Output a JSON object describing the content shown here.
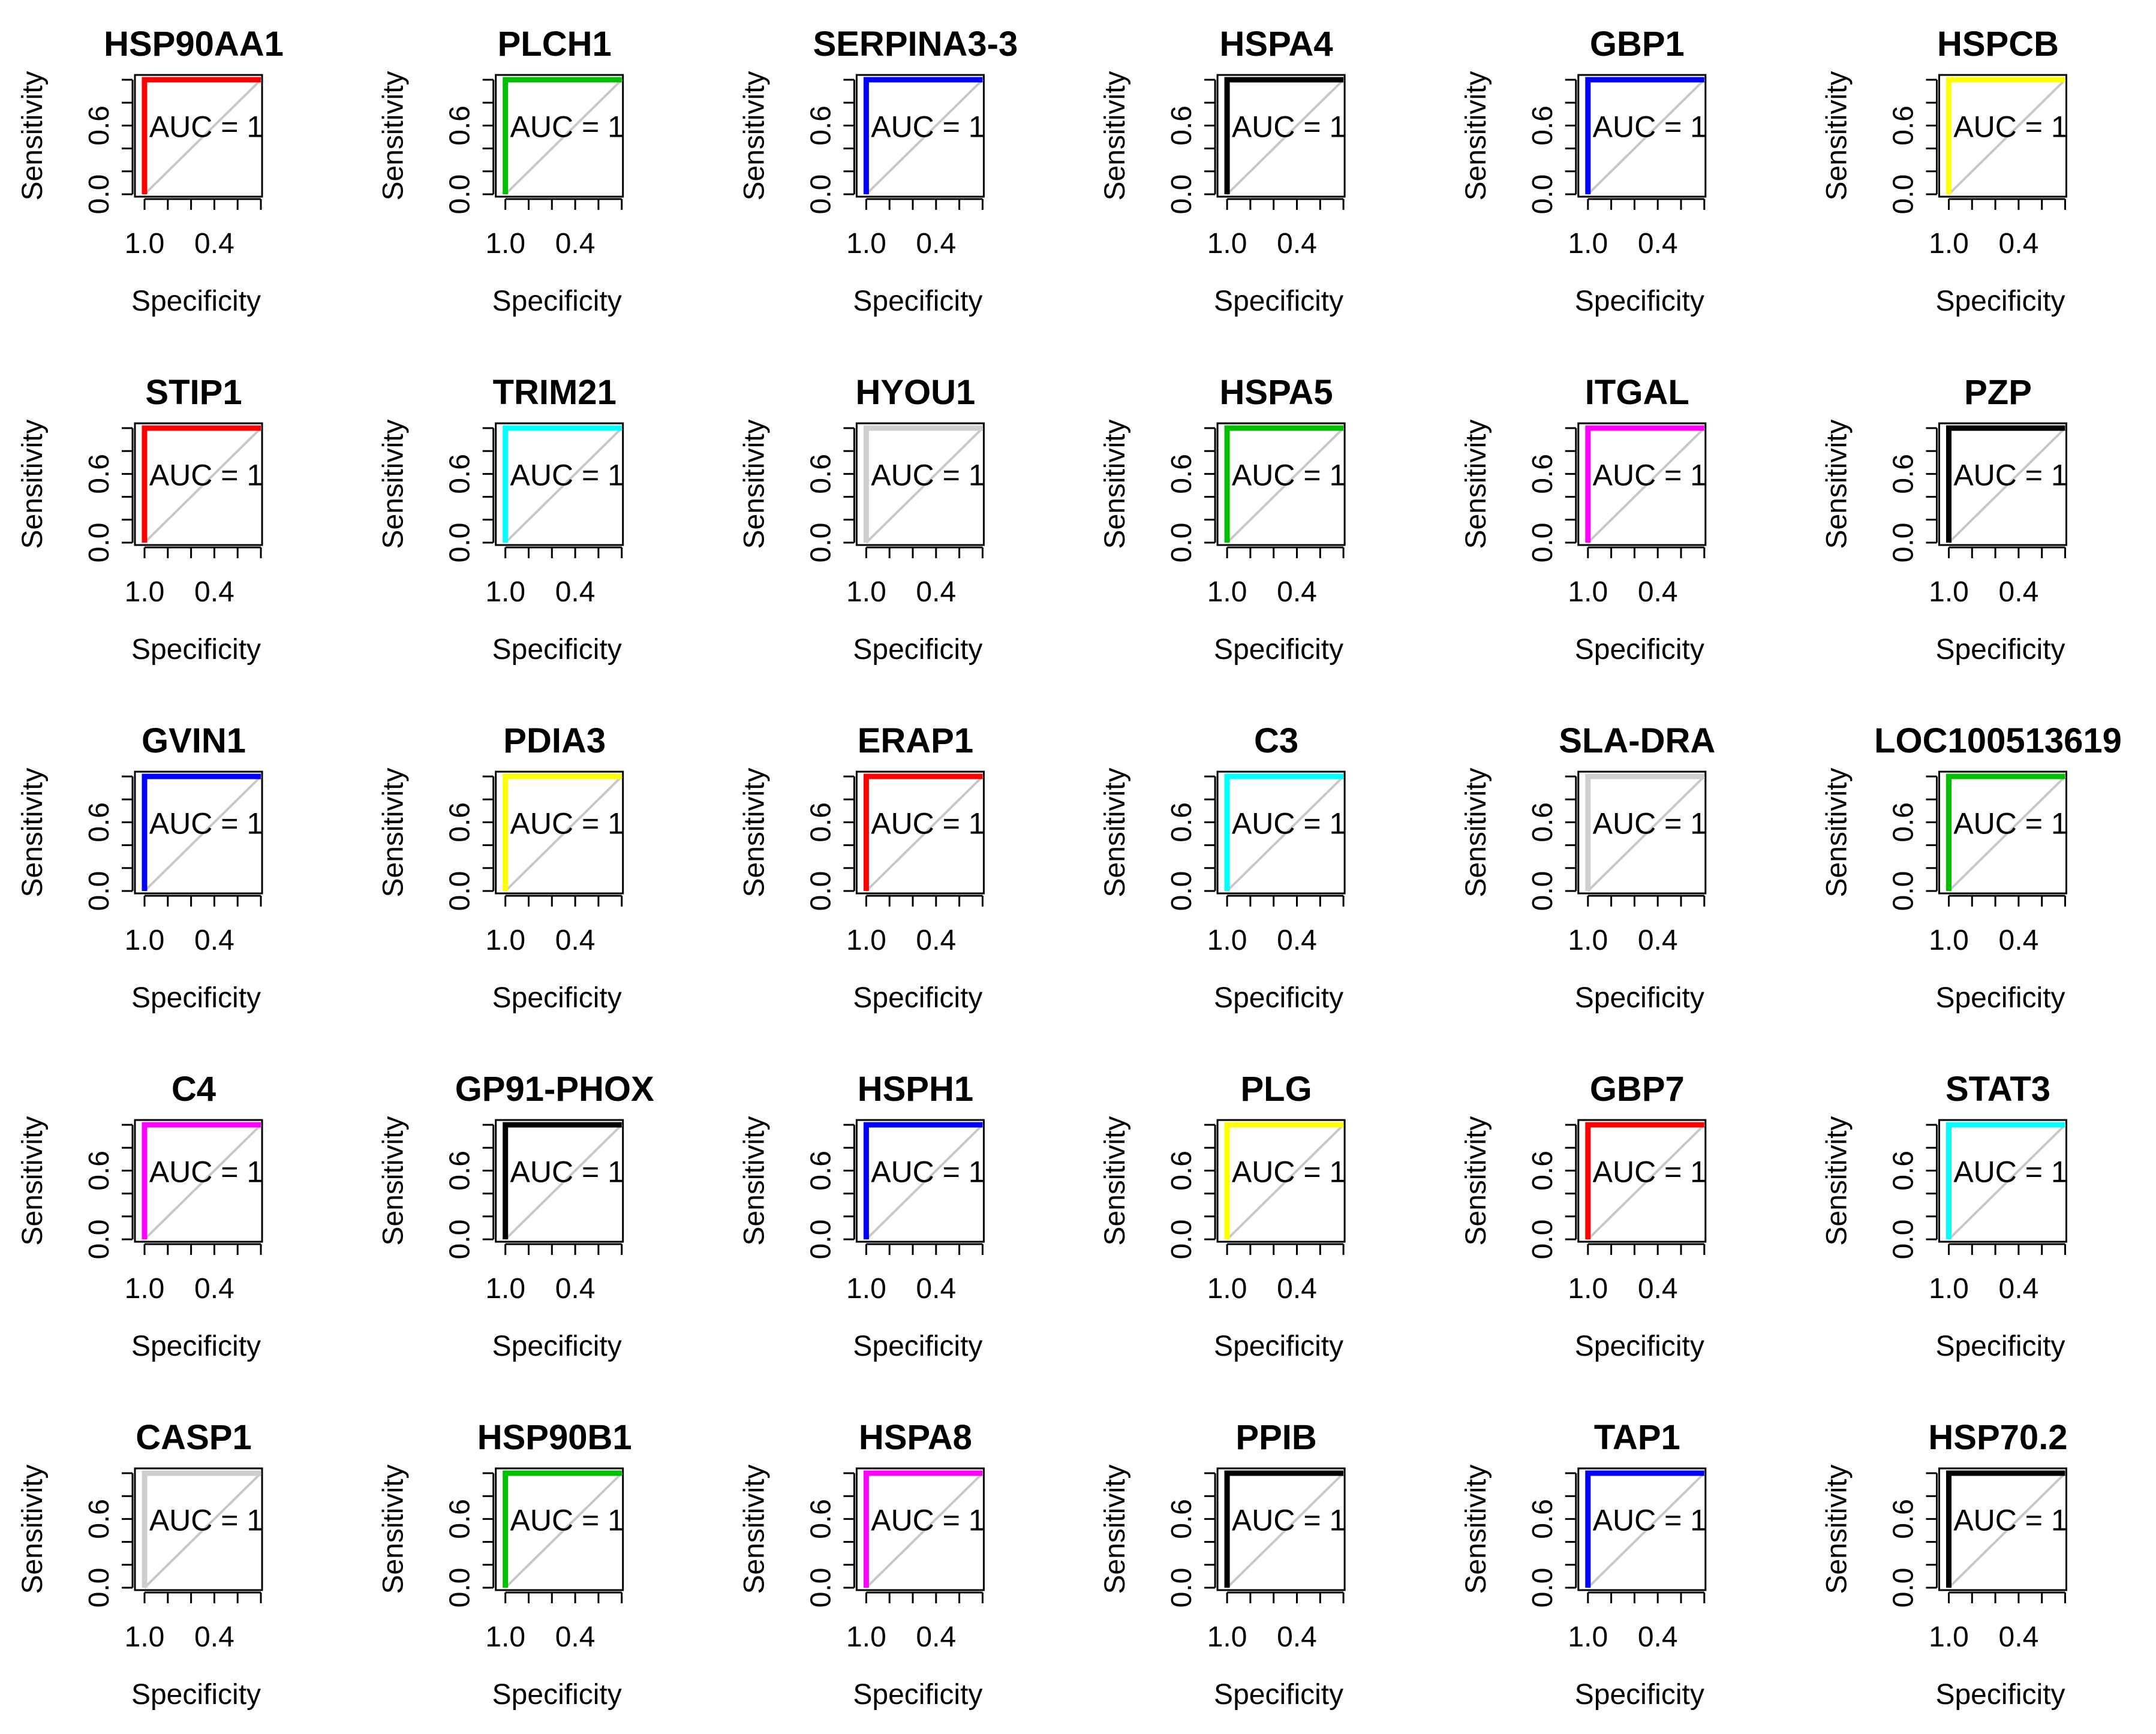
{
  "figure": {
    "x_axis_label": "Specificity",
    "y_axis_label": "Sensitivity",
    "x_tick_labels": [
      "1.0",
      "0.4"
    ],
    "y_tick_labels": [
      "0.0",
      "0.6"
    ],
    "reference_line_color": "#c8c8c8"
  },
  "chart_data": [
    {
      "type": "line",
      "title": "HSP90AA1",
      "color": "#ff0000",
      "annotation": "AUC = 1",
      "auc": 1,
      "xlabel": "Specificity",
      "ylabel": "Sensitivity",
      "xlim": [
        1.0,
        0.0
      ],
      "ylim": [
        0.0,
        1.0
      ],
      "x": [
        1.0,
        1.0,
        0.0
      ],
      "y": [
        0.0,
        1.0,
        1.0
      ]
    },
    {
      "type": "line",
      "title": "PLCH1",
      "color": "#00c000",
      "annotation": "AUC = 1",
      "auc": 1,
      "xlabel": "Specificity",
      "ylabel": "Sensitivity",
      "xlim": [
        1.0,
        0.0
      ],
      "ylim": [
        0.0,
        1.0
      ],
      "x": [
        1.0,
        1.0,
        0.0
      ],
      "y": [
        0.0,
        1.0,
        1.0
      ]
    },
    {
      "type": "line",
      "title": "SERPINA3-3",
      "color": "#0000ff",
      "annotation": "AUC = 1",
      "auc": 1,
      "xlabel": "Specificity",
      "ylabel": "Sensitivity",
      "xlim": [
        1.0,
        0.0
      ],
      "ylim": [
        0.0,
        1.0
      ],
      "x": [
        1.0,
        1.0,
        0.0
      ],
      "y": [
        0.0,
        1.0,
        1.0
      ]
    },
    {
      "type": "line",
      "title": "HSPA4",
      "color": "#000000",
      "annotation": "AUC = 1",
      "auc": 1,
      "xlabel": "Specificity",
      "ylabel": "Sensitivity",
      "xlim": [
        1.0,
        0.0
      ],
      "ylim": [
        0.0,
        1.0
      ],
      "x": [
        1.0,
        1.0,
        0.0
      ],
      "y": [
        0.0,
        1.0,
        1.0
      ]
    },
    {
      "type": "line",
      "title": "GBP1",
      "color": "#0000ff",
      "annotation": "AUC = 1",
      "auc": 1,
      "xlabel": "Specificity",
      "ylabel": "Sensitivity",
      "xlim": [
        1.0,
        0.0
      ],
      "ylim": [
        0.0,
        1.0
      ],
      "x": [
        1.0,
        1.0,
        0.0
      ],
      "y": [
        0.0,
        1.0,
        1.0
      ]
    },
    {
      "type": "line",
      "title": "HSPCB",
      "color": "#ffff00",
      "annotation": "AUC = 1",
      "auc": 1,
      "xlabel": "Specificity",
      "ylabel": "Sensitivity",
      "xlim": [
        1.0,
        0.0
      ],
      "ylim": [
        0.0,
        1.0
      ],
      "x": [
        1.0,
        1.0,
        0.0
      ],
      "y": [
        0.0,
        1.0,
        1.0
      ]
    },
    {
      "type": "line",
      "title": "STIP1",
      "color": "#ff0000",
      "annotation": "AUC = 1",
      "auc": 1,
      "xlabel": "Specificity",
      "ylabel": "Sensitivity",
      "xlim": [
        1.0,
        0.0
      ],
      "ylim": [
        0.0,
        1.0
      ],
      "x": [
        1.0,
        1.0,
        0.0
      ],
      "y": [
        0.0,
        1.0,
        1.0
      ]
    },
    {
      "type": "line",
      "title": "TRIM21",
      "color": "#00ffff",
      "annotation": "AUC = 1",
      "auc": 1,
      "xlabel": "Specificity",
      "ylabel": "Sensitivity",
      "xlim": [
        1.0,
        0.0
      ],
      "ylim": [
        0.0,
        1.0
      ],
      "x": [
        1.0,
        1.0,
        0.0
      ],
      "y": [
        0.0,
        1.0,
        1.0
      ]
    },
    {
      "type": "line",
      "title": "HYOU1",
      "color": "#cfcfcf",
      "annotation": "AUC = 1",
      "auc": 1,
      "xlabel": "Specificity",
      "ylabel": "Sensitivity",
      "xlim": [
        1.0,
        0.0
      ],
      "ylim": [
        0.0,
        1.0
      ],
      "x": [
        1.0,
        1.0,
        0.0
      ],
      "y": [
        0.0,
        1.0,
        1.0
      ]
    },
    {
      "type": "line",
      "title": "HSPA5",
      "color": "#00c000",
      "annotation": "AUC = 1",
      "auc": 1,
      "xlabel": "Specificity",
      "ylabel": "Sensitivity",
      "xlim": [
        1.0,
        0.0
      ],
      "ylim": [
        0.0,
        1.0
      ],
      "x": [
        1.0,
        1.0,
        0.0
      ],
      "y": [
        0.0,
        1.0,
        1.0
      ]
    },
    {
      "type": "line",
      "title": "ITGAL",
      "color": "#ff00ff",
      "annotation": "AUC = 1",
      "auc": 1,
      "xlabel": "Specificity",
      "ylabel": "Sensitivity",
      "xlim": [
        1.0,
        0.0
      ],
      "ylim": [
        0.0,
        1.0
      ],
      "x": [
        1.0,
        1.0,
        0.0
      ],
      "y": [
        0.0,
        1.0,
        1.0
      ]
    },
    {
      "type": "line",
      "title": "PZP",
      "color": "#000000",
      "annotation": "AUC = 1",
      "auc": 1,
      "xlabel": "Specificity",
      "ylabel": "Sensitivity",
      "xlim": [
        1.0,
        0.0
      ],
      "ylim": [
        0.0,
        1.0
      ],
      "x": [
        1.0,
        1.0,
        0.0
      ],
      "y": [
        0.0,
        1.0,
        1.0
      ]
    },
    {
      "type": "line",
      "title": "GVIN1",
      "color": "#0000ff",
      "annotation": "AUC = 1",
      "auc": 1,
      "xlabel": "Specificity",
      "ylabel": "Sensitivity",
      "xlim": [
        1.0,
        0.0
      ],
      "ylim": [
        0.0,
        1.0
      ],
      "x": [
        1.0,
        1.0,
        0.0
      ],
      "y": [
        0.0,
        1.0,
        1.0
      ]
    },
    {
      "type": "line",
      "title": "PDIA3",
      "color": "#ffff00",
      "annotation": "AUC = 1",
      "auc": 1,
      "xlabel": "Specificity",
      "ylabel": "Sensitivity",
      "xlim": [
        1.0,
        0.0
      ],
      "ylim": [
        0.0,
        1.0
      ],
      "x": [
        1.0,
        1.0,
        0.0
      ],
      "y": [
        0.0,
        1.0,
        1.0
      ]
    },
    {
      "type": "line",
      "title": "ERAP1",
      "color": "#ff0000",
      "annotation": "AUC = 1",
      "auc": 1,
      "xlabel": "Specificity",
      "ylabel": "Sensitivity",
      "xlim": [
        1.0,
        0.0
      ],
      "ylim": [
        0.0,
        1.0
      ],
      "x": [
        1.0,
        1.0,
        0.0
      ],
      "y": [
        0.0,
        1.0,
        1.0
      ]
    },
    {
      "type": "line",
      "title": "C3",
      "color": "#00ffff",
      "annotation": "AUC = 1",
      "auc": 1,
      "xlabel": "Specificity",
      "ylabel": "Sensitivity",
      "xlim": [
        1.0,
        0.0
      ],
      "ylim": [
        0.0,
        1.0
      ],
      "x": [
        1.0,
        1.0,
        0.0
      ],
      "y": [
        0.0,
        1.0,
        1.0
      ]
    },
    {
      "type": "line",
      "title": "SLA-DRA",
      "color": "#cfcfcf",
      "annotation": "AUC = 1",
      "auc": 1,
      "xlabel": "Specificity",
      "ylabel": "Sensitivity",
      "xlim": [
        1.0,
        0.0
      ],
      "ylim": [
        0.0,
        1.0
      ],
      "x": [
        1.0,
        1.0,
        0.0
      ],
      "y": [
        0.0,
        1.0,
        1.0
      ]
    },
    {
      "type": "line",
      "title": "LOC100513619",
      "color": "#00c000",
      "annotation": "AUC = 1",
      "auc": 1,
      "xlabel": "Specificity",
      "ylabel": "Sensitivity",
      "xlim": [
        1.0,
        0.0
      ],
      "ylim": [
        0.0,
        1.0
      ],
      "x": [
        1.0,
        1.0,
        0.0
      ],
      "y": [
        0.0,
        1.0,
        1.0
      ]
    },
    {
      "type": "line",
      "title": "C4",
      "color": "#ff00ff",
      "annotation": "AUC = 1",
      "auc": 1,
      "xlabel": "Specificity",
      "ylabel": "Sensitivity",
      "xlim": [
        1.0,
        0.0
      ],
      "ylim": [
        0.0,
        1.0
      ],
      "x": [
        1.0,
        1.0,
        0.0
      ],
      "y": [
        0.0,
        1.0,
        1.0
      ]
    },
    {
      "type": "line",
      "title": "GP91-PHOX",
      "color": "#000000",
      "annotation": "AUC = 1",
      "auc": 1,
      "xlabel": "Specificity",
      "ylabel": "Sensitivity",
      "xlim": [
        1.0,
        0.0
      ],
      "ylim": [
        0.0,
        1.0
      ],
      "x": [
        1.0,
        1.0,
        0.0
      ],
      "y": [
        0.0,
        1.0,
        1.0
      ]
    },
    {
      "type": "line",
      "title": "HSPH1",
      "color": "#0000ff",
      "annotation": "AUC = 1",
      "auc": 1,
      "xlabel": "Specificity",
      "ylabel": "Sensitivity",
      "xlim": [
        1.0,
        0.0
      ],
      "ylim": [
        0.0,
        1.0
      ],
      "x": [
        1.0,
        1.0,
        0.0
      ],
      "y": [
        0.0,
        1.0,
        1.0
      ]
    },
    {
      "type": "line",
      "title": "PLG",
      "color": "#ffff00",
      "annotation": "AUC = 1",
      "auc": 1,
      "xlabel": "Specificity",
      "ylabel": "Sensitivity",
      "xlim": [
        1.0,
        0.0
      ],
      "ylim": [
        0.0,
        1.0
      ],
      "x": [
        1.0,
        1.0,
        0.0
      ],
      "y": [
        0.0,
        1.0,
        1.0
      ]
    },
    {
      "type": "line",
      "title": "GBP7",
      "color": "#ff0000",
      "annotation": "AUC = 1",
      "auc": 1,
      "xlabel": "Specificity",
      "ylabel": "Sensitivity",
      "xlim": [
        1.0,
        0.0
      ],
      "ylim": [
        0.0,
        1.0
      ],
      "x": [
        1.0,
        1.0,
        0.0
      ],
      "y": [
        0.0,
        1.0,
        1.0
      ]
    },
    {
      "type": "line",
      "title": "STAT3",
      "color": "#00ffff",
      "annotation": "AUC = 1",
      "auc": 1,
      "xlabel": "Specificity",
      "ylabel": "Sensitivity",
      "xlim": [
        1.0,
        0.0
      ],
      "ylim": [
        0.0,
        1.0
      ],
      "x": [
        1.0,
        1.0,
        0.0
      ],
      "y": [
        0.0,
        1.0,
        1.0
      ]
    },
    {
      "type": "line",
      "title": "CASP1",
      "color": "#cfcfcf",
      "annotation": "AUC = 1",
      "auc": 1,
      "xlabel": "Specificity",
      "ylabel": "Sensitivity",
      "xlim": [
        1.0,
        0.0
      ],
      "ylim": [
        0.0,
        1.0
      ],
      "x": [
        1.0,
        1.0,
        0.0
      ],
      "y": [
        0.0,
        1.0,
        1.0
      ]
    },
    {
      "type": "line",
      "title": "HSP90B1",
      "color": "#00c000",
      "annotation": "AUC = 1",
      "auc": 1,
      "xlabel": "Specificity",
      "ylabel": "Sensitivity",
      "xlim": [
        1.0,
        0.0
      ],
      "ylim": [
        0.0,
        1.0
      ],
      "x": [
        1.0,
        1.0,
        0.0
      ],
      "y": [
        0.0,
        1.0,
        1.0
      ]
    },
    {
      "type": "line",
      "title": "HSPA8",
      "color": "#ff00ff",
      "annotation": "AUC = 1",
      "auc": 1,
      "xlabel": "Specificity",
      "ylabel": "Sensitivity",
      "xlim": [
        1.0,
        0.0
      ],
      "ylim": [
        0.0,
        1.0
      ],
      "x": [
        1.0,
        1.0,
        0.0
      ],
      "y": [
        0.0,
        1.0,
        1.0
      ]
    },
    {
      "type": "line",
      "title": "PPIB",
      "color": "#000000",
      "annotation": "AUC = 1",
      "auc": 1,
      "xlabel": "Specificity",
      "ylabel": "Sensitivity",
      "xlim": [
        1.0,
        0.0
      ],
      "ylim": [
        0.0,
        1.0
      ],
      "x": [
        1.0,
        1.0,
        0.0
      ],
      "y": [
        0.0,
        1.0,
        1.0
      ]
    },
    {
      "type": "line",
      "title": "TAP1",
      "color": "#0000ff",
      "annotation": "AUC = 1",
      "auc": 1,
      "xlabel": "Specificity",
      "ylabel": "Sensitivity",
      "xlim": [
        1.0,
        0.0
      ],
      "ylim": [
        0.0,
        1.0
      ],
      "x": [
        1.0,
        1.0,
        0.0
      ],
      "y": [
        0.0,
        1.0,
        1.0
      ]
    },
    {
      "type": "line",
      "title": "HSP70.2",
      "color": "#000000",
      "annotation": "AUC = 1",
      "auc": 1,
      "xlabel": "Specificity",
      "ylabel": "Sensitivity",
      "xlim": [
        1.0,
        0.0
      ],
      "ylim": [
        0.0,
        1.0
      ],
      "x": [
        1.0,
        1.0,
        0.0
      ],
      "y": [
        0.0,
        1.0,
        1.0
      ]
    }
  ]
}
